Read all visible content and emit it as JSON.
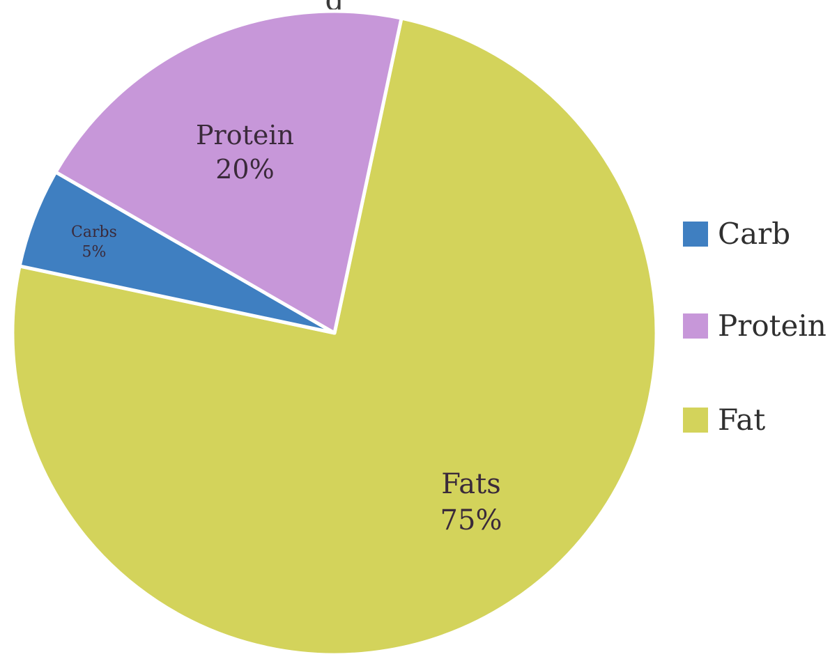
{
  "chart_data": {
    "type": "pie",
    "title": "",
    "categories": [
      "Carb",
      "Protein",
      "Fat"
    ],
    "values": [
      5,
      20,
      75
    ],
    "slice_labels": [
      {
        "name": "Carbs",
        "value_text": "5%"
      },
      {
        "name": "Protein",
        "value_text": "20%"
      },
      {
        "name": "Fats",
        "value_text": "75%"
      }
    ],
    "colors": [
      "#3f7fc1",
      "#c797d9",
      "#d3d35b"
    ],
    "legend": {
      "position": "right",
      "entries": [
        "Carb",
        "Protein",
        "Fat"
      ]
    }
  }
}
